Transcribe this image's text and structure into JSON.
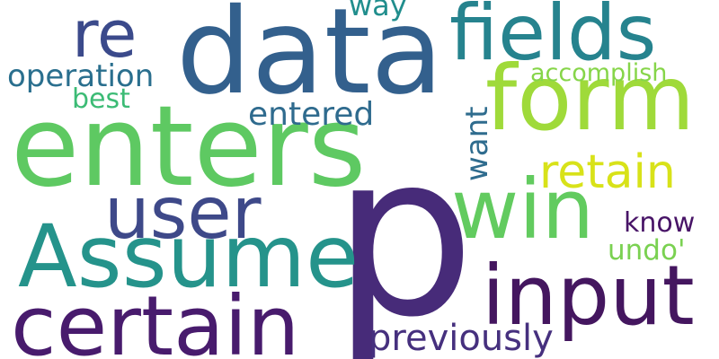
{
  "words": [
    {
      "text": "data",
      "color": "#33608d",
      "rotate": 0
    },
    {
      "text": "enters",
      "color": "#5ec962",
      "rotate": 0
    },
    {
      "text": "p",
      "color": "#472b79",
      "rotate": 0
    },
    {
      "text": "fields",
      "color": "#26838e",
      "rotate": 0
    },
    {
      "text": "form",
      "color": "#9fda3a",
      "rotate": 0
    },
    {
      "text": "win",
      "color": "#62cb5f",
      "rotate": 0
    },
    {
      "text": "re",
      "color": "#3b4a8b",
      "rotate": 0
    },
    {
      "text": "Assume",
      "color": "#25938b",
      "rotate": 0
    },
    {
      "text": "user",
      "color": "#3e4989",
      "rotate": 0
    },
    {
      "text": "input",
      "color": "#44165f",
      "rotate": 0
    },
    {
      "text": "certain",
      "color": "#481b6d",
      "rotate": 0
    },
    {
      "text": "retain",
      "color": "#d8e219",
      "rotate": 0
    },
    {
      "text": "previously",
      "color": "#46307e",
      "rotate": 0
    },
    {
      "text": "operation",
      "color": "#2a6f8e",
      "rotate": 0
    },
    {
      "text": "entered",
      "color": "#2f6b8e",
      "rotate": 0
    },
    {
      "text": "accomplish",
      "color": "#86d549",
      "rotate": 0
    },
    {
      "text": "best",
      "color": "#3cbb75",
      "rotate": 0
    },
    {
      "text": "way",
      "color": "#218e8d",
      "rotate": 0
    },
    {
      "text": "want",
      "color": "#2f6c8e",
      "rotate": -90
    },
    {
      "text": "know",
      "color": "#481467",
      "rotate": 0
    },
    {
      "text": "undo'",
      "color": "#7ad151",
      "rotate": 0
    }
  ]
}
